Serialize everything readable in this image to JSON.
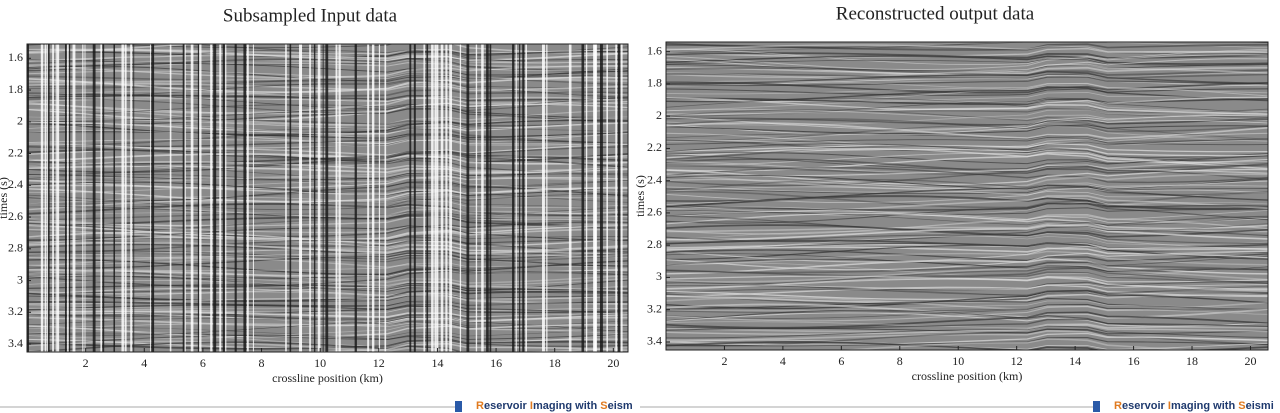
{
  "chart_data": [
    {
      "type": "seismic",
      "title": "Subsampled Input data",
      "xlabel": "crossline position (km)",
      "ylabel": "times (s)",
      "xlim": [
        0,
        20.5
      ],
      "xticks": [
        2,
        4,
        6,
        8,
        10,
        12,
        14,
        16,
        18,
        20
      ],
      "ylim": [
        1.51,
        3.45
      ],
      "yticks": [
        1.6,
        1.8,
        2,
        2.2,
        2.4,
        2.6,
        2.8,
        3,
        3.2,
        3.4
      ],
      "y_inverted": true
    },
    {
      "type": "seismic",
      "title": "Reconstructed output data",
      "xlabel": "crossline position (km)",
      "ylabel": "times (s)",
      "xlim": [
        0,
        20.6
      ],
      "xticks": [
        2,
        4,
        6,
        8,
        10,
        12,
        14,
        16,
        18,
        20
      ],
      "ylim": [
        1.54,
        3.45
      ],
      "yticks": [
        1.6,
        1.8,
        2,
        2.2,
        2.4,
        2.6,
        2.8,
        3,
        3.2,
        3.4
      ],
      "y_inverted": true
    }
  ],
  "footer": [
    "Reservoir Imaging with Seism",
    "Reservoir Imaging with Seismi"
  ]
}
